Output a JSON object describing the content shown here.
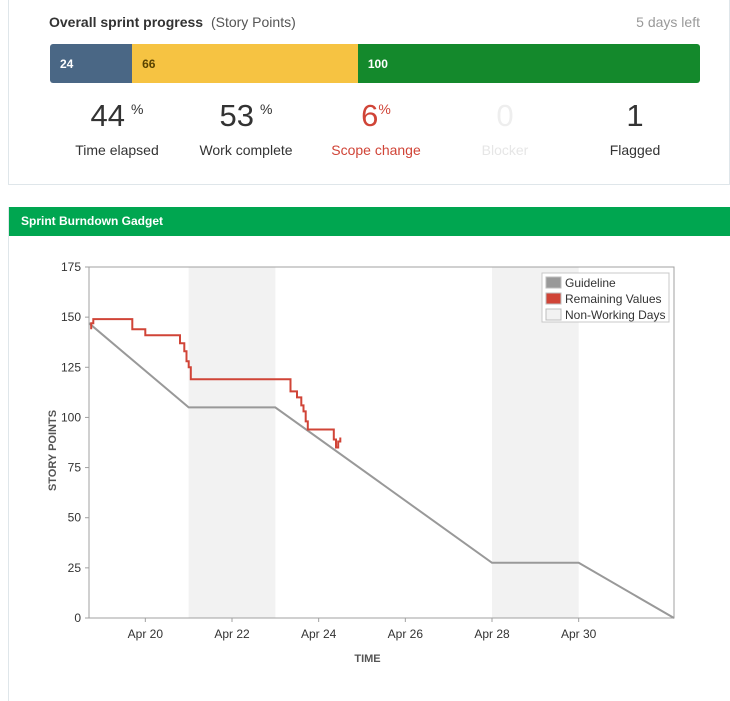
{
  "progress": {
    "title": "Overall sprint progress",
    "subtitle": "(Story Points)",
    "days_left": "5 days left",
    "segments": [
      {
        "label": "24",
        "value": 24,
        "color": "#4a6785"
      },
      {
        "label": "66",
        "value": 66,
        "color": "#f6c342"
      },
      {
        "label": "100",
        "value": 100,
        "color": "#14892c"
      }
    ],
    "stats": [
      {
        "value": "44",
        "unit": "%",
        "label": "Time elapsed"
      },
      {
        "value": "53",
        "unit": "%",
        "label": "Work complete"
      },
      {
        "value": "6",
        "unit": "%",
        "label": "Scope change"
      },
      {
        "value": "0",
        "unit": "",
        "label": "Blocker"
      },
      {
        "value": "1",
        "unit": "",
        "label": "Flagged"
      }
    ]
  },
  "gadget": {
    "title": "Sprint Burndown Gadget"
  },
  "chart_data": {
    "type": "line",
    "title": "",
    "xlabel": "TIME",
    "ylabel": "STORY POINTS",
    "ylim": [
      0,
      175
    ],
    "yticks": [
      0,
      25,
      50,
      75,
      100,
      125,
      150,
      175
    ],
    "xlim": [
      18.7,
      32.2
    ],
    "xticks": [
      {
        "x": 20,
        "label": "Apr 20"
      },
      {
        "x": 22,
        "label": "Apr 22"
      },
      {
        "x": 24,
        "label": "Apr 24"
      },
      {
        "x": 26,
        "label": "Apr 26"
      },
      {
        "x": 28,
        "label": "Apr 28"
      },
      {
        "x": 30,
        "label": "Apr 30"
      }
    ],
    "non_working_days": [
      [
        21.0,
        23.0
      ],
      [
        28.0,
        30.0
      ]
    ],
    "legend": {
      "placement": "top-right",
      "entries": [
        {
          "name": "Guideline",
          "color": "#999999"
        },
        {
          "name": "Remaining Values",
          "color": "#d04437"
        },
        {
          "name": "Non-Working Days",
          "color": "#f2f2f2"
        }
      ]
    },
    "series": [
      {
        "name": "Guideline",
        "color": "#999999",
        "x": [
          18.7,
          21.0,
          23.0,
          28.0,
          30.0,
          32.2
        ],
        "y": [
          147,
          105,
          105,
          27.5,
          27.5,
          0
        ]
      },
      {
        "name": "Remaining Values",
        "color": "#d04437",
        "x": [
          18.75,
          18.75,
          18.8,
          18.8,
          19.7,
          19.7,
          20.0,
          20.0,
          20.8,
          20.8,
          20.9,
          20.9,
          20.95,
          20.95,
          21.0,
          21.0,
          21.05,
          21.05,
          23.35,
          23.35,
          23.5,
          23.5,
          23.6,
          23.6,
          23.65,
          23.65,
          23.7,
          23.7,
          23.75,
          23.75,
          24.35,
          24.35,
          24.4,
          24.4,
          24.45,
          24.45,
          24.5,
          24.5
        ],
        "y": [
          144,
          147,
          147,
          149,
          149,
          144,
          144,
          141,
          141,
          137,
          137,
          133,
          133,
          128,
          128,
          125,
          125,
          119,
          119,
          113,
          113,
          110,
          110,
          106,
          106,
          103,
          103,
          98,
          98,
          94,
          94,
          89,
          89,
          85,
          85,
          88,
          88,
          90
        ]
      }
    ]
  }
}
